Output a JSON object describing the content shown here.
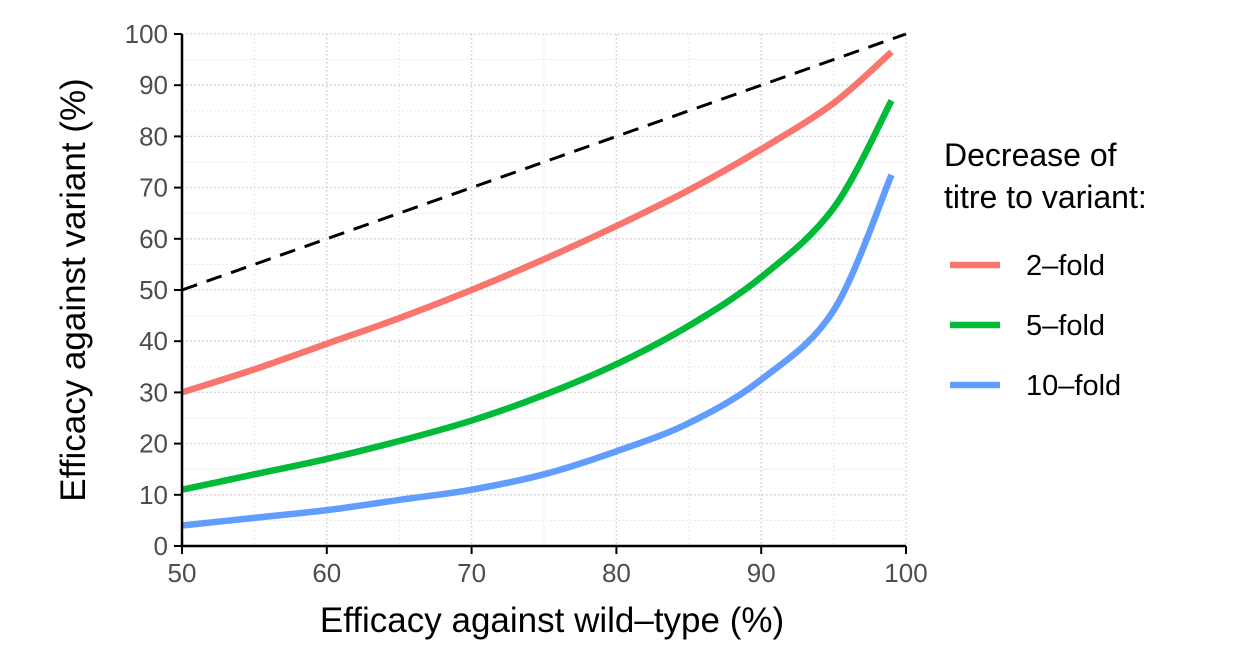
{
  "chart_data": {
    "type": "line",
    "xlabel": "Efficacy against wild–type (%)",
    "ylabel": "Efficacy against variant (%)",
    "xlim": [
      50,
      100
    ],
    "ylim": [
      0,
      100
    ],
    "x_ticks": [
      50,
      60,
      70,
      80,
      90,
      100
    ],
    "y_ticks": [
      0,
      10,
      20,
      30,
      40,
      50,
      60,
      70,
      80,
      90,
      100
    ],
    "grid": true,
    "legend": {
      "title_lines": [
        "Decrease of",
        "titre to variant:"
      ],
      "position": "right"
    },
    "reference_line": {
      "style": "dashed",
      "color": "#000000",
      "x": [
        50,
        100
      ],
      "y": [
        50,
        100
      ]
    },
    "x": [
      50,
      55,
      60,
      65,
      70,
      75,
      80,
      85,
      90,
      95,
      99
    ],
    "series": [
      {
        "name": "2–fold",
        "color": "#F8766D",
        "values": [
          30,
          34.5,
          39.5,
          44.5,
          50,
          56,
          62.5,
          69.5,
          77.5,
          86.5,
          96.5
        ]
      },
      {
        "name": "5–fold",
        "color": "#00BA38",
        "values": [
          11,
          14,
          17,
          20.5,
          24.5,
          29.5,
          35.5,
          43,
          52.5,
          66,
          87
        ]
      },
      {
        "name": "10–fold",
        "color": "#619CFF",
        "values": [
          4,
          5.5,
          7,
          9,
          11,
          14,
          18.5,
          24,
          32.5,
          46,
          72.5
        ]
      }
    ]
  }
}
